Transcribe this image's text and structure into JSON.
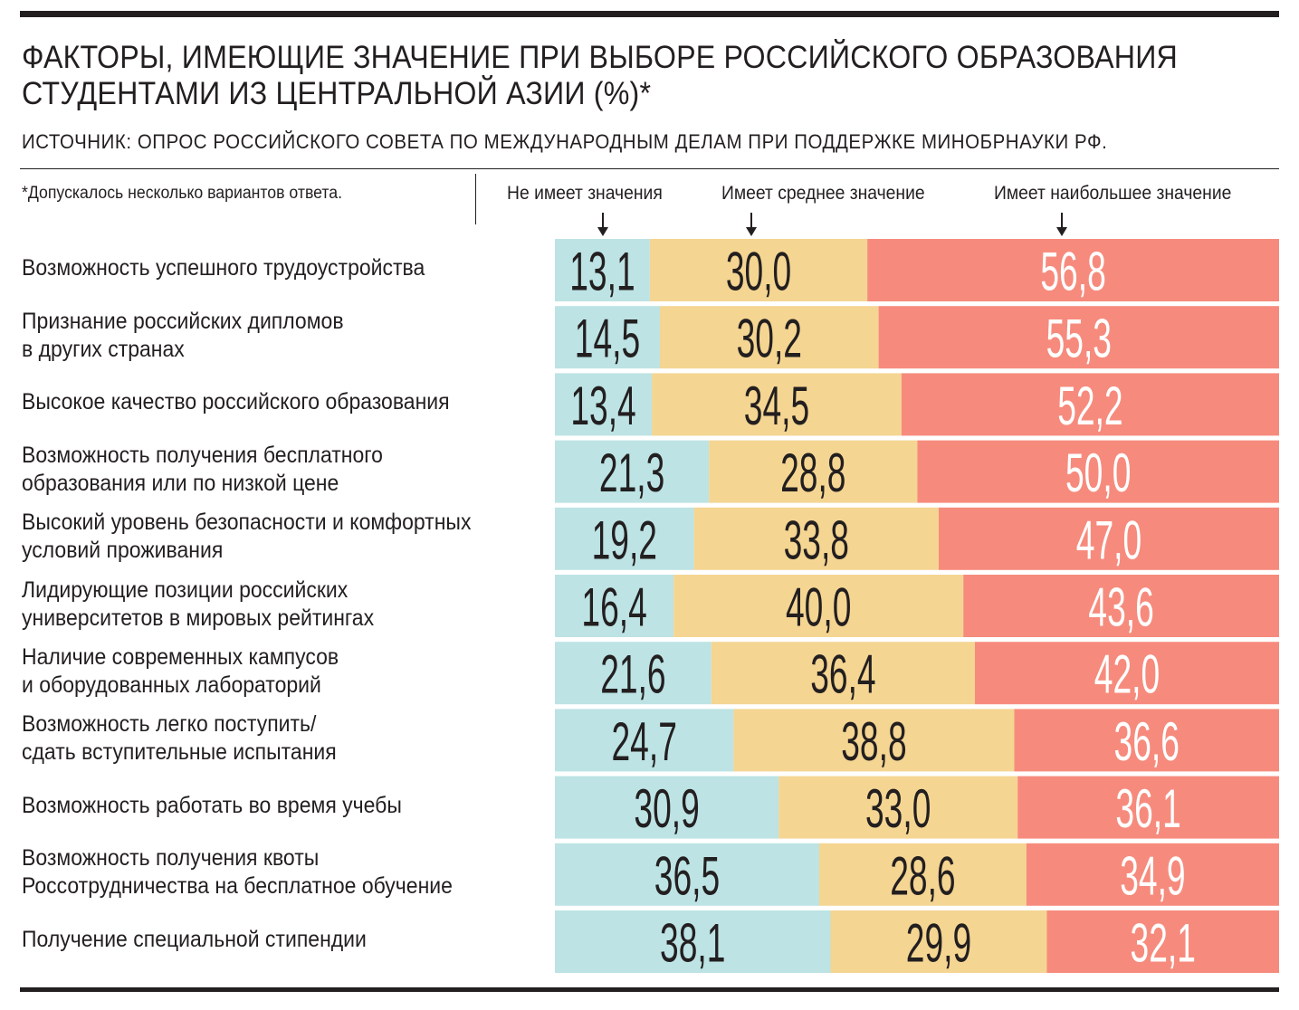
{
  "title_line1": "ФАКТОРЫ, ИМЕЮЩИЕ ЗНАЧЕНИЕ ПРИ ВЫБОРЕ РОССИЙСКОГО ОБРАЗОВАНИЯ",
  "title_line2": "СТУДЕНТАМИ ИЗ ЦЕНТРАЛЬНОЙ АЗИИ (%)*",
  "source": "ИСТОЧНИК: ОПРОС РОССИЙСКОГО СОВЕТА ПО МЕЖДУНАРОДНЫМ ДЕЛАМ ПРИ ПОДДЕРЖКЕ МИНОБРНАУКИ РФ.",
  "footnote": "*Допускалось несколько вариантов ответа.",
  "colors": {
    "no": "#bde3e4",
    "mid": "#f4d592",
    "high": "#f68b7d",
    "ink": "#231f20",
    "high_text": "#ffffff"
  },
  "chart_data": {
    "type": "bar",
    "orientation": "horizontal",
    "stacked": true,
    "unit": "%",
    "title": "ФАКТОРЫ, ИМЕЮЩИЕ ЗНАЧЕНИЕ ПРИ ВЫБОРЕ РОССИЙСКОГО ОБРАЗОВАНИЯ СТУДЕНТАМИ ИЗ ЦЕНТРАЛЬНОЙ АЗИИ (%)*",
    "categories": [
      [
        "Возможность успешного трудоустройства"
      ],
      [
        "Признание российских дипломов",
        "в других странах"
      ],
      [
        "Высокое качество российского образования"
      ],
      [
        "Возможность получения бесплатного",
        "образования или по низкой цене"
      ],
      [
        "Высокий уровень безопасности и комфортных",
        "условий проживания"
      ],
      [
        "Лидирующие позиции российских",
        "университетов в мировых рейтингах"
      ],
      [
        "Наличие современных кампусов",
        "и оборудованных лабораторий"
      ],
      [
        "Возможность легко поступить/",
        "сдать вступительные испытания"
      ],
      [
        "Возможность работать во время учебы"
      ],
      [
        "Возможность получения квоты",
        "Россотрудничества на бесплатное обучение"
      ],
      [
        "Получение специальной стипендии"
      ]
    ],
    "series": [
      {
        "name": "Не имеет значения",
        "key": "no",
        "values": [
          13.1,
          14.5,
          13.4,
          21.3,
          19.2,
          16.4,
          21.6,
          24.7,
          30.9,
          36.5,
          38.1
        ],
        "labels": [
          "13,1",
          "14,5",
          "13,4",
          "21,3",
          "19,2",
          "16,4",
          "21,6",
          "24,7",
          "30,9",
          "36,5",
          "38,1"
        ]
      },
      {
        "name": "Имеет среднее значение",
        "key": "mid",
        "values": [
          30.0,
          30.2,
          34.5,
          28.8,
          33.8,
          40.0,
          36.4,
          38.8,
          33.0,
          28.6,
          29.9
        ],
        "labels": [
          "30,0",
          "30,2",
          "34,5",
          "28,8",
          "33,8",
          "40,0",
          "36,4",
          "38,8",
          "33,0",
          "28,6",
          "29,9"
        ]
      },
      {
        "name": "Имеет наибольшее значение",
        "key": "high",
        "values": [
          56.8,
          55.3,
          52.2,
          50.0,
          47.0,
          43.6,
          42.0,
          36.6,
          36.1,
          34.9,
          32.1
        ],
        "labels": [
          "56,8",
          "55,3",
          "52,2",
          "50,0",
          "47,0",
          "43,6",
          "42,0",
          "36,6",
          "36,1",
          "34,9",
          "32,1"
        ]
      }
    ]
  }
}
